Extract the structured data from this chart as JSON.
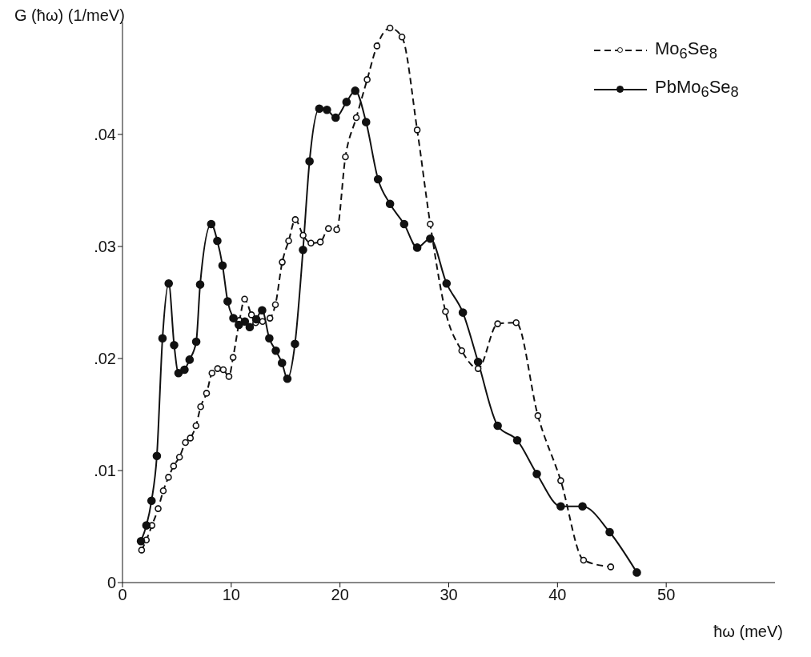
{
  "chart_data": {
    "type": "line",
    "xlabel": "ħω (meV)",
    "ylabel": "G (ħω) (1/meV)",
    "xlim": [
      0,
      60
    ],
    "xticks": [
      0,
      10,
      20,
      30,
      40,
      50
    ],
    "ylim": [
      0,
      0.05
    ],
    "yticks": [
      0,
      {
        "value": 0.01,
        "label": ".01"
      },
      {
        "value": 0.02,
        "label": ".02"
      },
      {
        "value": 0.03,
        "label": ".03"
      },
      {
        "value": 0.04,
        "label": ".04"
      }
    ],
    "legend": "top right",
    "marker": "circle",
    "series": [
      {
        "name": "Mo$_{6}$Se$_{8}$",
        "color": "#111111",
        "line_style": "dashed",
        "x": [
          1.76,
          2.19,
          2.71,
          3.28,
          3.75,
          4.23,
          4.7,
          5.24,
          5.79,
          6.24,
          6.76,
          7.19,
          7.73,
          8.23,
          8.75,
          9.27,
          9.79,
          10.17,
          10.76,
          11.23,
          11.86,
          12.25,
          12.88,
          13.56,
          14.06,
          14.69,
          15.28,
          15.89,
          16.61,
          17.33,
          18.19,
          18.94,
          19.7,
          20.5,
          21.5,
          22.5,
          23.4,
          24.6,
          25.7,
          27.1,
          28.3,
          29.7,
          31.2,
          32.7,
          34.5,
          36.2,
          38.2,
          40.3,
          42.4,
          44.9
        ],
        "values": [
          0.0029,
          0.0038,
          0.0051,
          0.0066,
          0.0082,
          0.0094,
          0.0104,
          0.0112,
          0.0125,
          0.0129,
          0.014,
          0.0157,
          0.0169,
          0.0187,
          0.0191,
          0.019,
          0.0184,
          0.0201,
          0.0234,
          0.0253,
          0.0239,
          0.0232,
          0.0233,
          0.0236,
          0.0248,
          0.0286,
          0.0305,
          0.0324,
          0.031,
          0.0303,
          0.0304,
          0.0316,
          0.0315,
          0.038,
          0.0415,
          0.0449,
          0.0479,
          0.0495,
          0.0487,
          0.0404,
          0.032,
          0.0242,
          0.0207,
          0.0191,
          0.0231,
          0.0232,
          0.0149,
          0.0091,
          0.002,
          0.0014
        ]
      },
      {
        "name": "PbMo$_{6}$Se$_{8}$",
        "color": "#111111",
        "line_style": "solid",
        "x": [
          1.7,
          2.2,
          2.67,
          3.16,
          3.68,
          4.25,
          4.75,
          5.15,
          5.7,
          6.17,
          6.78,
          7.14,
          8.16,
          8.72,
          9.2,
          9.67,
          10.2,
          10.7,
          11.25,
          11.7,
          12.3,
          12.84,
          13.5,
          14.1,
          14.67,
          15.16,
          15.86,
          16.6,
          17.2,
          18.1,
          18.8,
          19.6,
          20.6,
          21.4,
          22.4,
          23.5,
          24.6,
          25.9,
          27.1,
          28.3,
          29.8,
          31.3,
          32.7,
          34.5,
          36.3,
          38.1,
          40.3,
          42.3,
          44.8,
          47.3
        ],
        "values": [
          0.0037,
          0.0051,
          0.0073,
          0.0113,
          0.0218,
          0.0267,
          0.0212,
          0.0187,
          0.019,
          0.0199,
          0.0215,
          0.0266,
          0.032,
          0.0305,
          0.0283,
          0.0251,
          0.0236,
          0.023,
          0.0233,
          0.0228,
          0.0235,
          0.0243,
          0.0218,
          0.0207,
          0.0196,
          0.0182,
          0.0213,
          0.0297,
          0.0376,
          0.0423,
          0.0422,
          0.0415,
          0.0429,
          0.0439,
          0.0411,
          0.036,
          0.0338,
          0.032,
          0.0299,
          0.0307,
          0.0267,
          0.0241,
          0.0197,
          0.014,
          0.0127,
          0.0097,
          0.0068,
          0.0068,
          0.0045,
          0.0009
        ]
      }
    ]
  }
}
